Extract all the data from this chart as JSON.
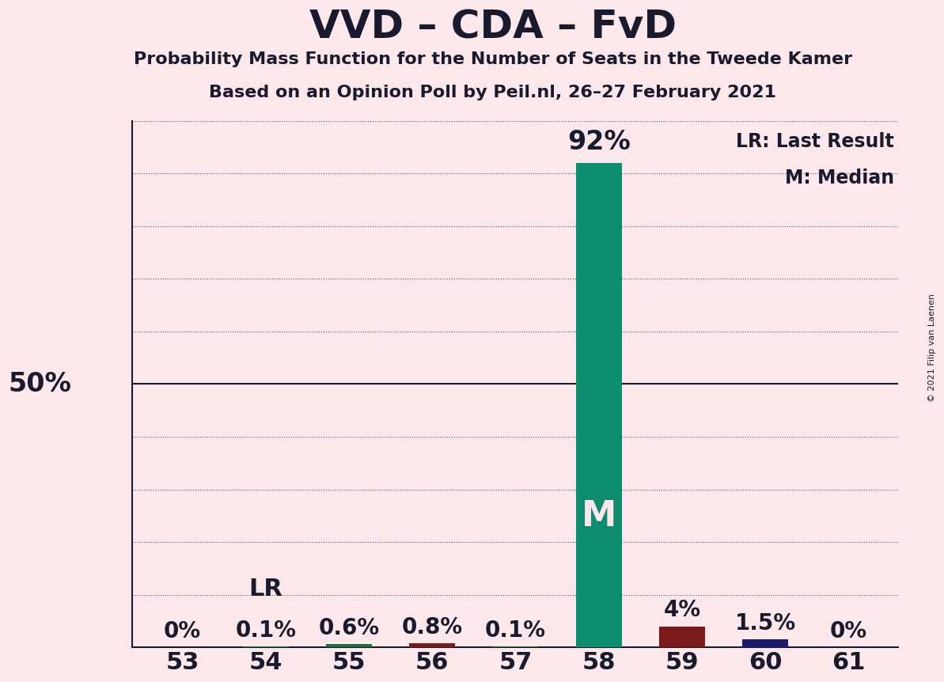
{
  "title": "VVD – CDA – FvD",
  "subtitle": "Probability Mass Function for the Number of Seats in the Tweede Kamer",
  "subsubtitle": "Based on an Opinion Poll by Peil.nl, 26–27 February 2021",
  "copyright": "© 2021 Filip van Laenen",
  "categories": [
    53,
    54,
    55,
    56,
    57,
    58,
    59,
    60,
    61
  ],
  "values": [
    0.0,
    0.1,
    0.6,
    0.8,
    0.1,
    92.0,
    4.0,
    1.5,
    0.0
  ],
  "pct_labels": [
    "0%",
    "0.1%",
    "0.6%",
    "0.8%",
    "0.1%",
    "92%",
    "4%",
    "1.5%",
    "0%"
  ],
  "bar_colors": [
    "#1a7a5e",
    "#1a7a5e",
    "#1a6e3c",
    "#7a1a1a",
    "#1a6e3c",
    "#0d8c6e",
    "#7a1a1a",
    "#1a1a6e",
    "#1a7a5e"
  ],
  "median_seat": 58,
  "lr_seat": 54,
  "background_color": "#fce8ea",
  "ylim": [
    0,
    100
  ],
  "yticks": [
    0,
    10,
    20,
    30,
    40,
    50,
    60,
    70,
    80,
    90,
    100
  ],
  "ylabel_50": "50%",
  "legend_lr": "LR: Last Result",
  "legend_m": "M: Median",
  "text_color": "#1a1a2e",
  "title_fontsize": 36,
  "subtitle_fontsize": 16,
  "subsubtitle_fontsize": 16,
  "bar_teal": "#0d8c6e",
  "bar_darkred": "#7a1a1a",
  "bar_darkblue": "#1a1a6e",
  "bar_darkgreen": "#1a6e3c"
}
